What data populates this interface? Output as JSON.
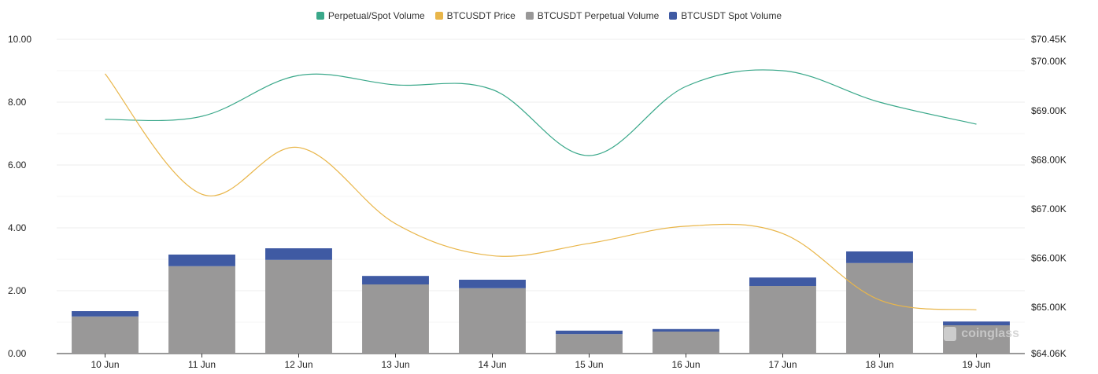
{
  "chart_data": {
    "type": "bar",
    "title": "",
    "categories": [
      "10 Jun",
      "11 Jun",
      "12 Jun",
      "13 Jun",
      "14 Jun",
      "15 Jun",
      "16 Jun",
      "17 Jun",
      "18 Jun",
      "19 Jun"
    ],
    "series": [
      {
        "name": "BTCUSDT Perpetual Volume",
        "type": "bar",
        "axis": "left",
        "stack": "volume",
        "color": "#999898",
        "values": [
          1.18,
          2.78,
          2.98,
          2.2,
          2.08,
          0.62,
          0.7,
          2.15,
          2.88,
          0.9
        ]
      },
      {
        "name": "BTCUSDT Spot Volume",
        "type": "bar",
        "axis": "left",
        "stack": "volume",
        "color": "#3f5aa3",
        "values": [
          0.17,
          0.37,
          0.37,
          0.27,
          0.27,
          0.11,
          0.08,
          0.27,
          0.37,
          0.12
        ]
      },
      {
        "name": "Perpetual/Spot Volume",
        "type": "line",
        "axis": "left",
        "color": "#3aa88a",
        "values": [
          7.45,
          7.55,
          8.85,
          8.55,
          8.4,
          6.3,
          8.5,
          9.0,
          8.0,
          7.3
        ]
      },
      {
        "name": "BTCUSDT Price",
        "type": "line",
        "axis": "right",
        "color": "#e9b64a",
        "values": [
          69750,
          67300,
          68250,
          66700,
          66050,
          66300,
          66650,
          66500,
          65150,
          64950
        ]
      }
    ],
    "legend": [
      "Perpetual/Spot Volume",
      "BTCUSDT Price",
      "BTCUSDT Perpetual Volume",
      "BTCUSDT Spot Volume"
    ],
    "legend_position": "top-center",
    "y_left": {
      "ylim": [
        0,
        10
      ],
      "ticks": [
        "10.00",
        "8.00",
        "6.00",
        "4.00",
        "2.00",
        "0.00"
      ],
      "tick_values": [
        10,
        8,
        6,
        4,
        2,
        0
      ]
    },
    "y_right": {
      "ylim": [
        64060,
        70450
      ],
      "ticks": [
        "$70.45K",
        "$70.00K",
        "$69.00K",
        "$68.00K",
        "$67.00K",
        "$66.00K",
        "$65.00K",
        "$64.06K"
      ],
      "tick_values": [
        70450,
        70000,
        69000,
        68000,
        67000,
        66000,
        65000,
        64060
      ]
    },
    "grid": true,
    "xlabel": "",
    "ylabel": ""
  },
  "watermark": "coinglass"
}
